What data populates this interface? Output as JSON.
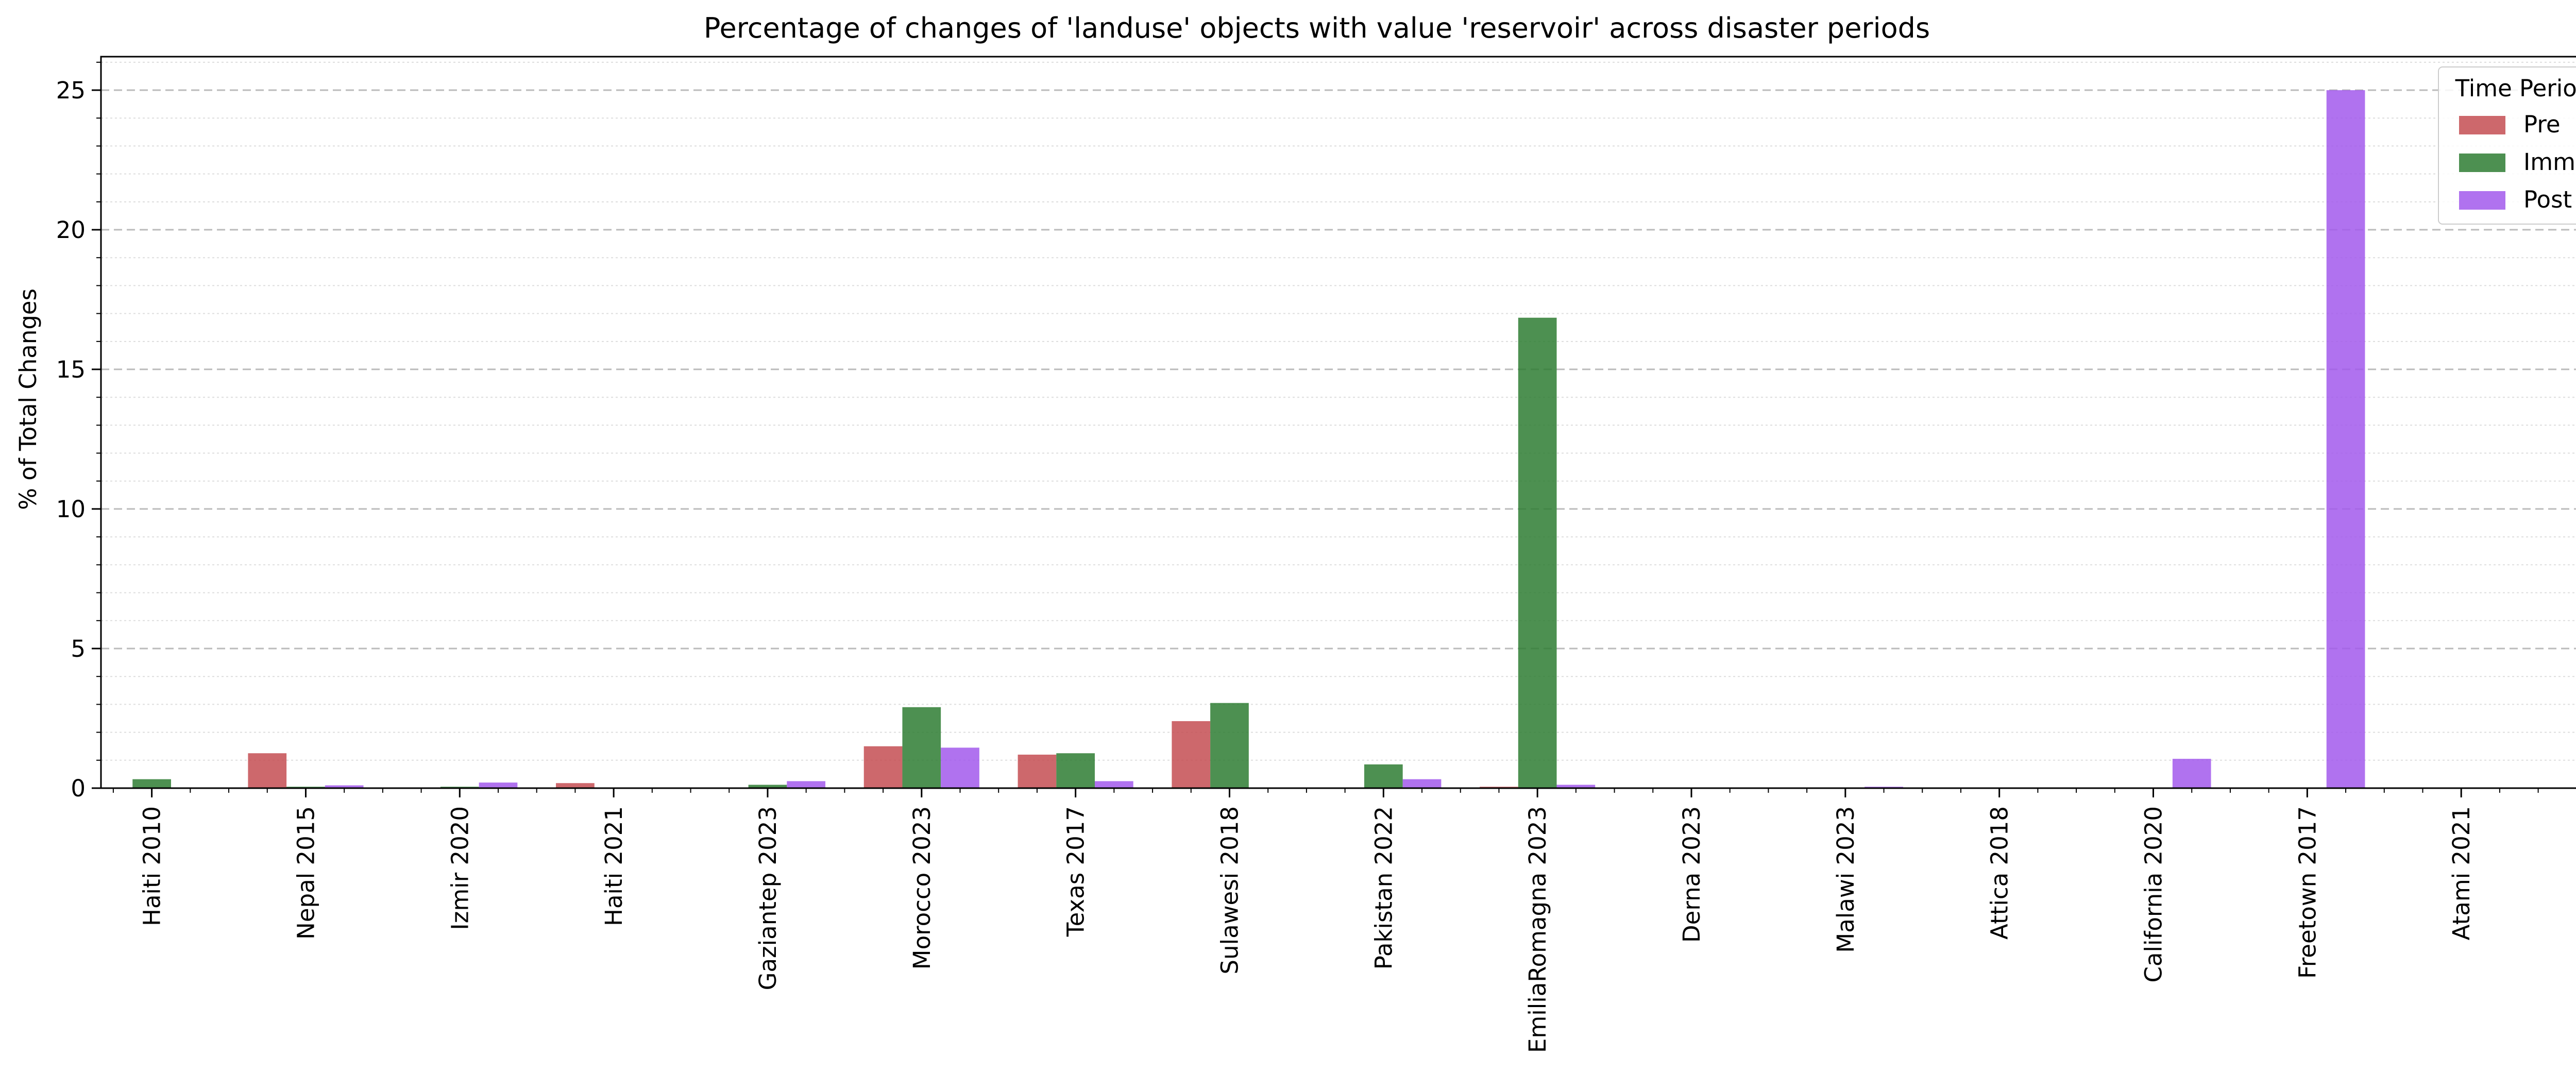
{
  "chart_data": {
    "type": "bar",
    "title": "Percentage of changes of 'landuse' objects with value 'reservoir' across disaster periods",
    "xlabel": "",
    "ylabel": "% of Total Changes",
    "ylim": [
      0,
      26.2
    ],
    "yticks": [
      0,
      5,
      10,
      15,
      20,
      25
    ],
    "grid": {
      "major": true,
      "minor": true,
      "axis": "y"
    },
    "legend": {
      "title": "Time Period",
      "placement": "top-right"
    },
    "categories": [
      "Haiti 2010",
      "Nepal 2015",
      "Izmir 2020",
      "Haiti 2021",
      "Gaziantep 2023",
      "Morocco 2023",
      "Texas 2017",
      "Sulawesi 2018",
      "Pakistan 2022",
      "EmiliaRomagna 2023",
      "Derna 2023",
      "Malawi 2023",
      "Attica 2018",
      "California 2020",
      "Freetown 2017",
      "Atami 2021"
    ],
    "series": [
      {
        "name": "Pre",
        "color": "#c44e52",
        "values": [
          0,
          1.25,
          0,
          0.18,
          0,
          1.5,
          1.2,
          2.4,
          0,
          0.05,
          0,
          0,
          0,
          0,
          0,
          0
        ]
      },
      {
        "name": "Imm",
        "color": "#2e7d32",
        "values": [
          0.32,
          0.05,
          0.05,
          0.02,
          0.12,
          2.9,
          1.25,
          3.05,
          0.85,
          16.85,
          0,
          0,
          0,
          0,
          0,
          0
        ]
      },
      {
        "name": "Post",
        "color": "#a259ec",
        "values": [
          0,
          0.1,
          0.2,
          0,
          0.25,
          1.45,
          0.25,
          0,
          0.32,
          0.12,
          0,
          0.05,
          0,
          1.05,
          25.0,
          0
        ]
      }
    ]
  }
}
